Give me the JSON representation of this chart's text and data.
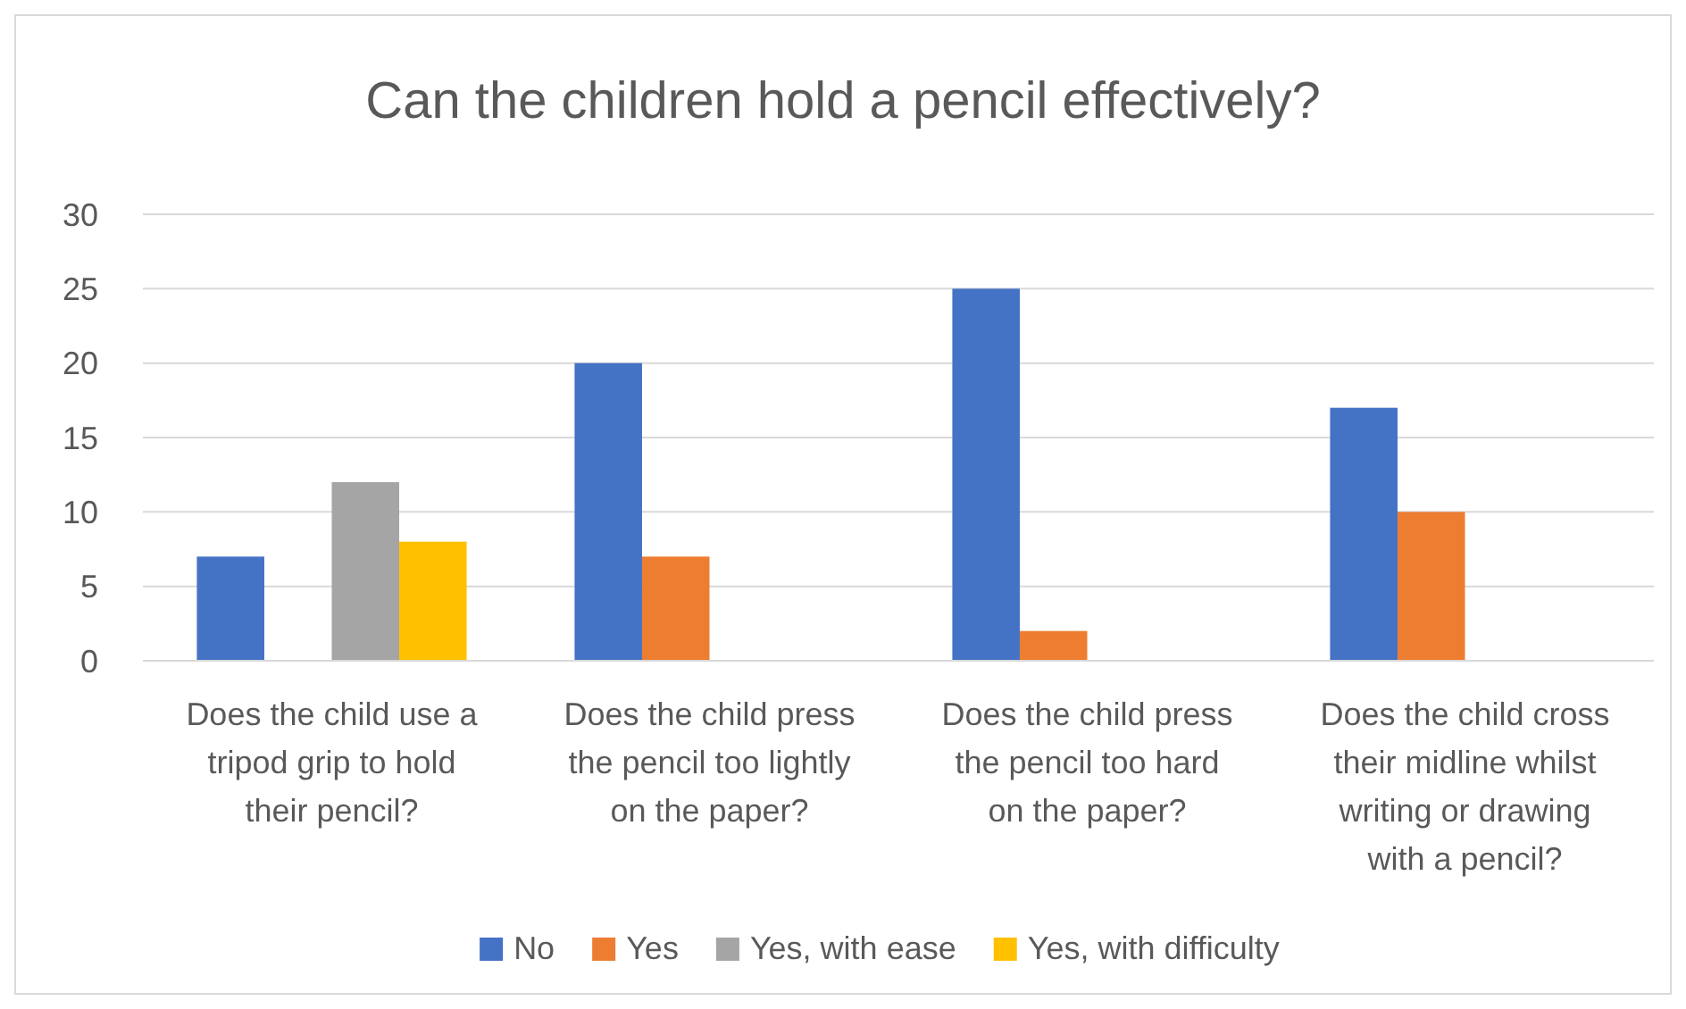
{
  "chart_data": {
    "type": "bar",
    "title": "Can the children hold a pencil effectively?",
    "categories": [
      "Does the child use a tripod grip to hold their pencil?",
      "Does the child press the pencil too lightly on the paper?",
      "Does the child press the pencil too hard on the paper?",
      "Does the child cross their midline whilst writing or drawing with a pencil?"
    ],
    "series": [
      {
        "name": "No",
        "color": "#4472c4",
        "values": [
          7,
          20,
          25,
          17
        ]
      },
      {
        "name": "Yes",
        "color": "#ed7d31",
        "values": [
          null,
          7,
          2,
          10
        ]
      },
      {
        "name": "Yes, with ease",
        "color": "#a5a5a5",
        "values": [
          12,
          null,
          null,
          null
        ]
      },
      {
        "name": "Yes, with difficulty",
        "color": "#ffc000",
        "values": [
          8,
          null,
          null,
          null
        ]
      }
    ],
    "ylim": [
      0,
      30
    ],
    "yticks": [
      0,
      5,
      10,
      15,
      20,
      25,
      30
    ],
    "grid": "y",
    "legend": "bottom"
  }
}
